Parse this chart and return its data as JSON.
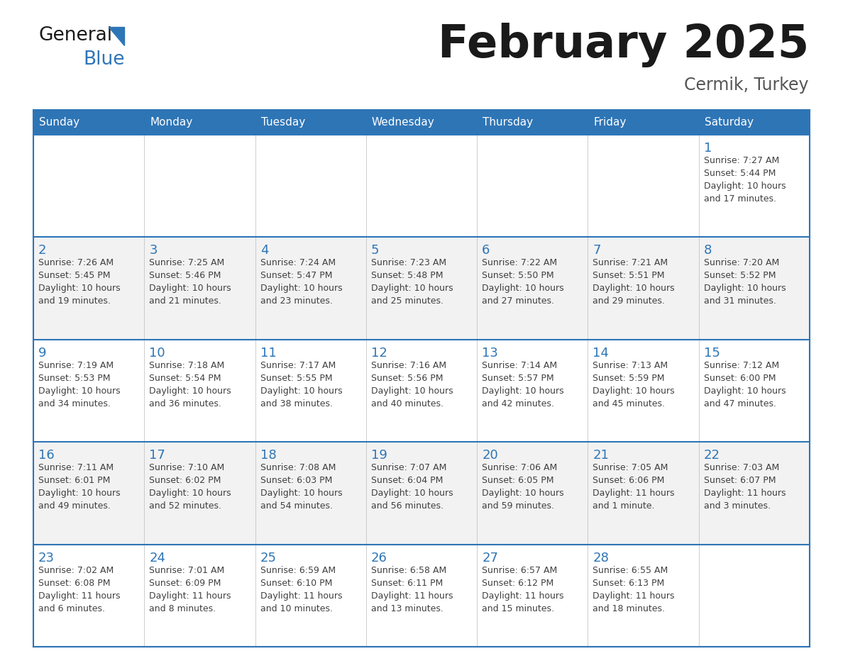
{
  "title": "February 2025",
  "subtitle": "Cermik, Turkey",
  "days_of_week": [
    "Sunday",
    "Monday",
    "Tuesday",
    "Wednesday",
    "Thursday",
    "Friday",
    "Saturday"
  ],
  "header_bg": "#2E75B6",
  "header_text": "#FFFFFF",
  "cell_bg_white": "#FFFFFF",
  "cell_bg_gray": "#F2F2F2",
  "border_color": "#2E75B6",
  "grid_line_color": "#BBBBBB",
  "day_number_color": "#2E75B6",
  "info_text_color": "#404040",
  "title_color": "#1a1a1a",
  "subtitle_color": "#555555",
  "logo_dark_color": "#1a1a1a",
  "logo_blue_color": "#2E75B6",
  "logo_triangle_color": "#2E75B6",
  "calendar_data": [
    [
      {
        "day": null,
        "info": ""
      },
      {
        "day": null,
        "info": ""
      },
      {
        "day": null,
        "info": ""
      },
      {
        "day": null,
        "info": ""
      },
      {
        "day": null,
        "info": ""
      },
      {
        "day": null,
        "info": ""
      },
      {
        "day": 1,
        "info": "Sunrise: 7:27 AM\nSunset: 5:44 PM\nDaylight: 10 hours\nand 17 minutes."
      }
    ],
    [
      {
        "day": 2,
        "info": "Sunrise: 7:26 AM\nSunset: 5:45 PM\nDaylight: 10 hours\nand 19 minutes."
      },
      {
        "day": 3,
        "info": "Sunrise: 7:25 AM\nSunset: 5:46 PM\nDaylight: 10 hours\nand 21 minutes."
      },
      {
        "day": 4,
        "info": "Sunrise: 7:24 AM\nSunset: 5:47 PM\nDaylight: 10 hours\nand 23 minutes."
      },
      {
        "day": 5,
        "info": "Sunrise: 7:23 AM\nSunset: 5:48 PM\nDaylight: 10 hours\nand 25 minutes."
      },
      {
        "day": 6,
        "info": "Sunrise: 7:22 AM\nSunset: 5:50 PM\nDaylight: 10 hours\nand 27 minutes."
      },
      {
        "day": 7,
        "info": "Sunrise: 7:21 AM\nSunset: 5:51 PM\nDaylight: 10 hours\nand 29 minutes."
      },
      {
        "day": 8,
        "info": "Sunrise: 7:20 AM\nSunset: 5:52 PM\nDaylight: 10 hours\nand 31 minutes."
      }
    ],
    [
      {
        "day": 9,
        "info": "Sunrise: 7:19 AM\nSunset: 5:53 PM\nDaylight: 10 hours\nand 34 minutes."
      },
      {
        "day": 10,
        "info": "Sunrise: 7:18 AM\nSunset: 5:54 PM\nDaylight: 10 hours\nand 36 minutes."
      },
      {
        "day": 11,
        "info": "Sunrise: 7:17 AM\nSunset: 5:55 PM\nDaylight: 10 hours\nand 38 minutes."
      },
      {
        "day": 12,
        "info": "Sunrise: 7:16 AM\nSunset: 5:56 PM\nDaylight: 10 hours\nand 40 minutes."
      },
      {
        "day": 13,
        "info": "Sunrise: 7:14 AM\nSunset: 5:57 PM\nDaylight: 10 hours\nand 42 minutes."
      },
      {
        "day": 14,
        "info": "Sunrise: 7:13 AM\nSunset: 5:59 PM\nDaylight: 10 hours\nand 45 minutes."
      },
      {
        "day": 15,
        "info": "Sunrise: 7:12 AM\nSunset: 6:00 PM\nDaylight: 10 hours\nand 47 minutes."
      }
    ],
    [
      {
        "day": 16,
        "info": "Sunrise: 7:11 AM\nSunset: 6:01 PM\nDaylight: 10 hours\nand 49 minutes."
      },
      {
        "day": 17,
        "info": "Sunrise: 7:10 AM\nSunset: 6:02 PM\nDaylight: 10 hours\nand 52 minutes."
      },
      {
        "day": 18,
        "info": "Sunrise: 7:08 AM\nSunset: 6:03 PM\nDaylight: 10 hours\nand 54 minutes."
      },
      {
        "day": 19,
        "info": "Sunrise: 7:07 AM\nSunset: 6:04 PM\nDaylight: 10 hours\nand 56 minutes."
      },
      {
        "day": 20,
        "info": "Sunrise: 7:06 AM\nSunset: 6:05 PM\nDaylight: 10 hours\nand 59 minutes."
      },
      {
        "day": 21,
        "info": "Sunrise: 7:05 AM\nSunset: 6:06 PM\nDaylight: 11 hours\nand 1 minute."
      },
      {
        "day": 22,
        "info": "Sunrise: 7:03 AM\nSunset: 6:07 PM\nDaylight: 11 hours\nand 3 minutes."
      }
    ],
    [
      {
        "day": 23,
        "info": "Sunrise: 7:02 AM\nSunset: 6:08 PM\nDaylight: 11 hours\nand 6 minutes."
      },
      {
        "day": 24,
        "info": "Sunrise: 7:01 AM\nSunset: 6:09 PM\nDaylight: 11 hours\nand 8 minutes."
      },
      {
        "day": 25,
        "info": "Sunrise: 6:59 AM\nSunset: 6:10 PM\nDaylight: 11 hours\nand 10 minutes."
      },
      {
        "day": 26,
        "info": "Sunrise: 6:58 AM\nSunset: 6:11 PM\nDaylight: 11 hours\nand 13 minutes."
      },
      {
        "day": 27,
        "info": "Sunrise: 6:57 AM\nSunset: 6:12 PM\nDaylight: 11 hours\nand 15 minutes."
      },
      {
        "day": 28,
        "info": "Sunrise: 6:55 AM\nSunset: 6:13 PM\nDaylight: 11 hours\nand 18 minutes."
      },
      {
        "day": null,
        "info": ""
      }
    ]
  ]
}
